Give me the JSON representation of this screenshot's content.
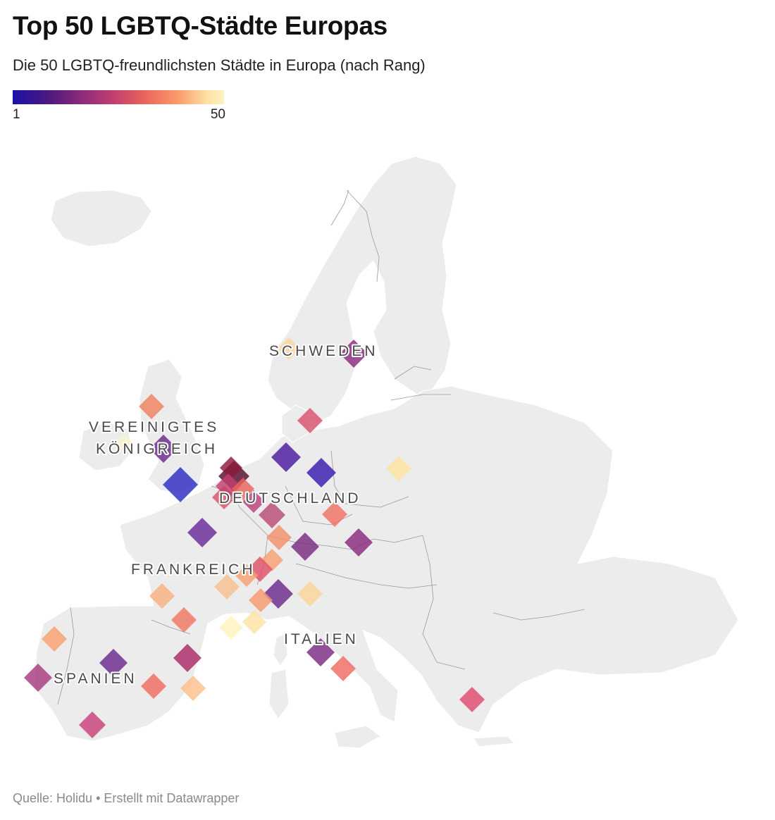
{
  "header": {
    "title": "Top 50 LGBTQ-Städte Europas",
    "subtitle": "Die 50 LGBTQ-freundlichsten Städte in Europa (nach Rang)"
  },
  "legend": {
    "min_label": "1",
    "max_label": "50",
    "colors": [
      "#1a11a8",
      "#51197e",
      "#8a2a7c",
      "#c2406e",
      "#e8645b",
      "#fb9a6a",
      "#fde0a5",
      "#fdf3c4"
    ]
  },
  "country_labels": [
    {
      "id": "schweden",
      "lines": [
        "SCHWEDEN"
      ]
    },
    {
      "id": "vereinigtes-koenigreich",
      "lines": [
        "VEREINIGTES",
        "KÖNIGREICH"
      ]
    },
    {
      "id": "deutschland",
      "lines": [
        "DEUTSCHLAND"
      ]
    },
    {
      "id": "frankreich",
      "lines": [
        "FRANKREICH"
      ]
    },
    {
      "id": "italien",
      "lines": [
        "ITALIEN"
      ]
    },
    {
      "id": "spanien",
      "lines": [
        "SPANIEN"
      ]
    }
  ],
  "footer": {
    "text": "Quelle: Holidu • Erstellt mit Datawrapper"
  }
}
